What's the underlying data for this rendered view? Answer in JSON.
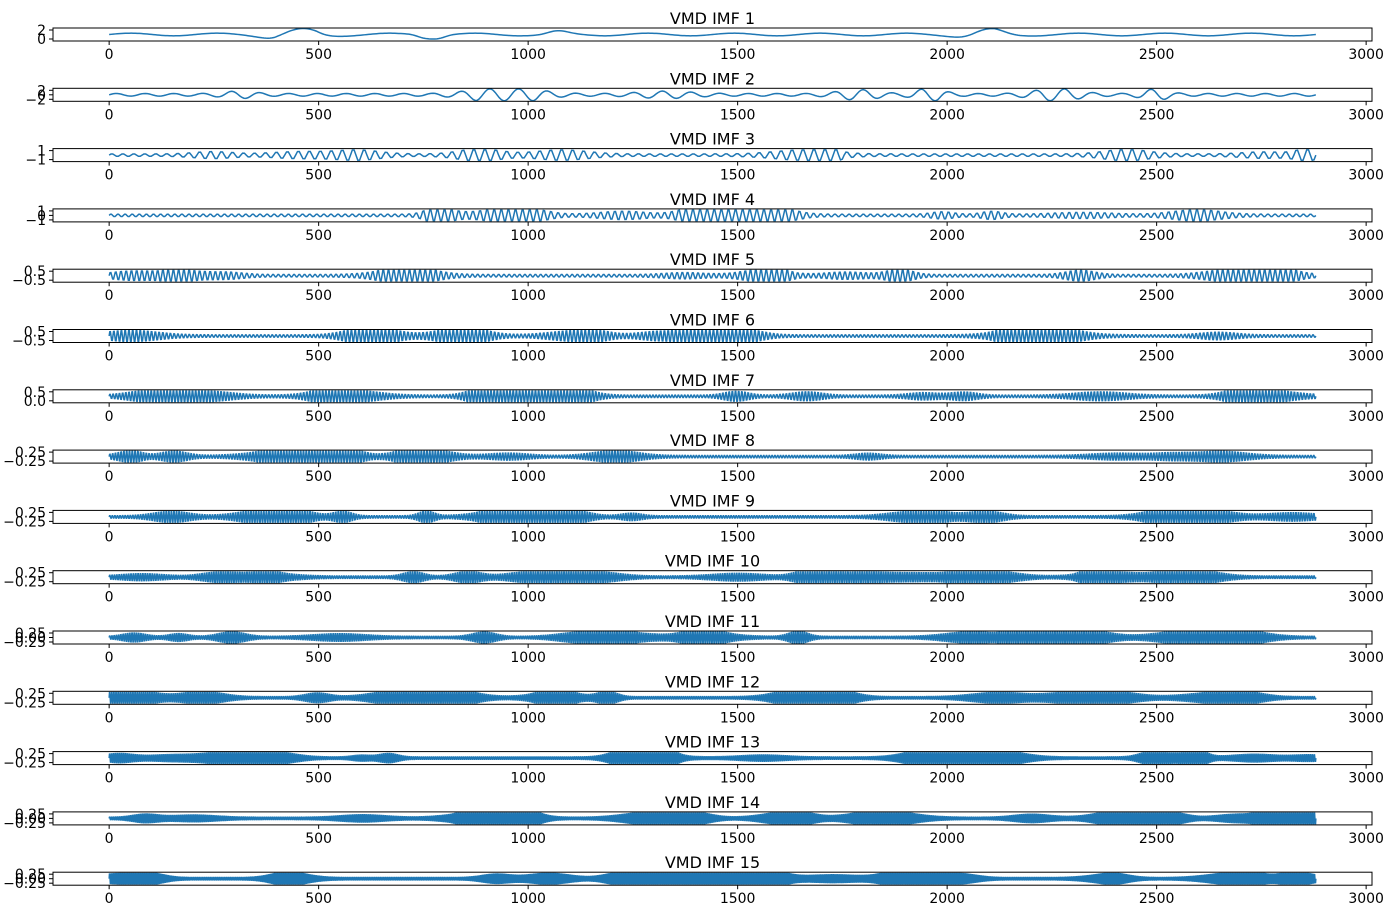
{
  "figure": {
    "line_color": "#1f77b4",
    "axis_color": "#000000"
  },
  "chart_data": [
    {
      "type": "line",
      "title": "VMD IMF 1",
      "x_range": [
        0,
        2880
      ],
      "xlim": [
        -134,
        3014
      ],
      "x_ticks": [
        0,
        500,
        1000,
        1500,
        2000,
        2500,
        3000
      ],
      "y_ticks": [
        "2",
        "0"
      ],
      "amplitude": 1.5,
      "cycles": 14,
      "envelope_bursts": 6
    },
    {
      "type": "line",
      "title": "VMD IMF 2",
      "x_range": [
        0,
        2880
      ],
      "xlim": [
        -134,
        3014
      ],
      "x_ticks": [
        0,
        500,
        1000,
        1500,
        2000,
        2500,
        3000
      ],
      "y_ticks": [
        "2",
        "0",
        "−2"
      ],
      "amplitude": 1.5,
      "cycles": 42,
      "envelope_bursts": 8
    },
    {
      "type": "line",
      "title": "VMD IMF 3",
      "x_range": [
        0,
        2880
      ],
      "xlim": [
        -134,
        3014
      ],
      "x_ticks": [
        0,
        500,
        1000,
        1500,
        2000,
        2500,
        3000
      ],
      "y_ticks": [
        "1",
        "−1"
      ],
      "amplitude": 1.3,
      "cycles": 110,
      "envelope_bursts": 10
    },
    {
      "type": "line",
      "title": "VMD IMF 4",
      "x_range": [
        0,
        2880
      ],
      "xlim": [
        -134,
        3014
      ],
      "x_ticks": [
        0,
        500,
        1000,
        1500,
        2000,
        2500,
        3000
      ],
      "y_ticks": [
        "1",
        "0",
        "−1"
      ],
      "amplitude": 1.0,
      "cycles": 170,
      "envelope_bursts": 14
    },
    {
      "type": "line",
      "title": "VMD IMF 5",
      "x_range": [
        0,
        2880
      ],
      "xlim": [
        -134,
        3014
      ],
      "x_ticks": [
        0,
        500,
        1000,
        1500,
        2000,
        2500,
        3000
      ],
      "y_ticks": [
        "0.5",
        "−0.5"
      ],
      "amplitude": 0.6,
      "cycles": 230,
      "envelope_bursts": 16
    },
    {
      "type": "line",
      "title": "VMD IMF 6",
      "x_range": [
        0,
        2880
      ],
      "xlim": [
        -134,
        3014
      ],
      "x_ticks": [
        0,
        500,
        1000,
        1500,
        2000,
        2500,
        3000
      ],
      "y_ticks": [
        "0.5",
        "−0.5"
      ],
      "amplitude": 0.55,
      "cycles": 320,
      "envelope_bursts": 18
    },
    {
      "type": "line",
      "title": "VMD IMF 7",
      "x_range": [
        0,
        2880
      ],
      "xlim": [
        -134,
        3014
      ],
      "x_ticks": [
        0,
        500,
        1000,
        1500,
        2000,
        2500,
        3000
      ],
      "y_ticks": [
        "0.5",
        "0.0"
      ],
      "amplitude": 0.5,
      "cycles": 380,
      "envelope_bursts": 18
    },
    {
      "type": "line",
      "title": "VMD IMF 8",
      "x_range": [
        0,
        2880
      ],
      "xlim": [
        -134,
        3014
      ],
      "x_ticks": [
        0,
        500,
        1000,
        1500,
        2000,
        2500,
        3000
      ],
      "y_ticks": [
        "0.25",
        "−0.25"
      ],
      "amplitude": 0.35,
      "cycles": 430,
      "envelope_bursts": 20
    },
    {
      "type": "line",
      "title": "VMD IMF 9",
      "x_range": [
        0,
        2880
      ],
      "xlim": [
        -134,
        3014
      ],
      "x_ticks": [
        0,
        500,
        1000,
        1500,
        2000,
        2500,
        3000
      ],
      "y_ticks": [
        "0.25",
        "−0.25"
      ],
      "amplitude": 0.3,
      "cycles": 470,
      "envelope_bursts": 20
    },
    {
      "type": "line",
      "title": "VMD IMF 10",
      "x_range": [
        0,
        2880
      ],
      "xlim": [
        -134,
        3014
      ],
      "x_ticks": [
        0,
        500,
        1000,
        1500,
        2000,
        2500,
        3000
      ],
      "y_ticks": [
        "0.25",
        "−0.25"
      ],
      "amplitude": 0.28,
      "cycles": 510,
      "envelope_bursts": 22
    },
    {
      "type": "line",
      "title": "VMD IMF 11",
      "x_range": [
        0,
        2880
      ],
      "xlim": [
        -134,
        3014
      ],
      "x_ticks": [
        0,
        500,
        1000,
        1500,
        2000,
        2500,
        3000
      ],
      "y_ticks": [
        "0.25",
        "0.00",
        "−0.25"
      ],
      "amplitude": 0.28,
      "cycles": 540,
      "envelope_bursts": 22
    },
    {
      "type": "line",
      "title": "VMD IMF 12",
      "x_range": [
        0,
        2880
      ],
      "xlim": [
        -134,
        3014
      ],
      "x_ticks": [
        0,
        500,
        1000,
        1500,
        2000,
        2500,
        3000
      ],
      "y_ticks": [
        "0.25",
        "−0.25"
      ],
      "amplitude": 0.27,
      "cycles": 570,
      "envelope_bursts": 22
    },
    {
      "type": "line",
      "title": "VMD IMF 13",
      "x_range": [
        0,
        2880
      ],
      "xlim": [
        -134,
        3014
      ],
      "x_ticks": [
        0,
        500,
        1000,
        1500,
        2000,
        2500,
        3000
      ],
      "y_ticks": [
        "0.25",
        "−0.25"
      ],
      "amplitude": 0.27,
      "cycles": 600,
      "envelope_bursts": 24
    },
    {
      "type": "line",
      "title": "VMD IMF 14",
      "x_range": [
        0,
        2880
      ],
      "xlim": [
        -134,
        3014
      ],
      "x_ticks": [
        0,
        500,
        1000,
        1500,
        2000,
        2500,
        3000
      ],
      "y_ticks": [
        "0.25",
        "0.00",
        "−0.25"
      ],
      "amplitude": 0.25,
      "cycles": 630,
      "envelope_bursts": 24
    },
    {
      "type": "line",
      "title": "VMD IMF 15",
      "x_range": [
        0,
        2880
      ],
      "xlim": [
        -134,
        3014
      ],
      "x_ticks": [
        0,
        500,
        1000,
        1500,
        2000,
        2500,
        3000
      ],
      "y_ticks": [
        "0.25",
        "0.00",
        "−0.25"
      ],
      "amplitude": 0.3,
      "cycles": 660,
      "envelope_bursts": 26
    }
  ]
}
